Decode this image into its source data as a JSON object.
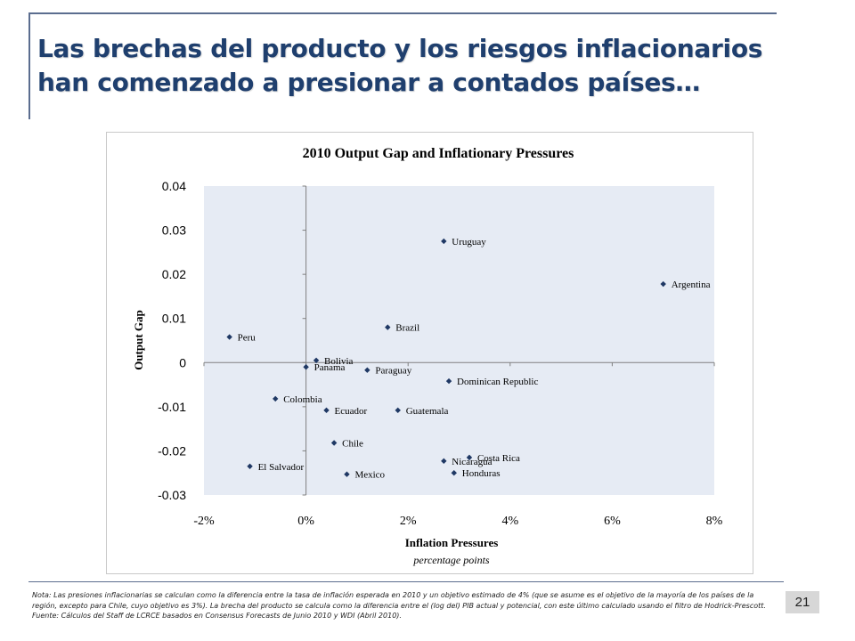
{
  "slide": {
    "title": "Las brechas del producto y los riesgos inflacionarios han comenzado a presionar a contados países…",
    "note": "Nota: Las presiones inflacionarias se calculan como la diferencia entre la tasa de inflación esperada en 2010  y un objetivo estimado de 4% (que se asume es el objetivo de la mayoría de los países de la región, excepto para Chile, cuyo objetivo es 3%). La brecha del producto se calcula como la diferencia entre el (log del) PIB actual y potencial, con este último calculado usando el filtro de Hodrick-Prescott. Fuente: Cálculos del Staff de LCRCE basados en Consensus Forecasts de Junio 2010 y WDI (Abril 2010).",
    "page_number": "21",
    "colors": {
      "title": "#1f3f6e",
      "rule": "#5b6d8f",
      "marker": "#1f3864",
      "plot_bg": "#e6ebf4",
      "page_box": "#d7d7d7"
    }
  },
  "chart_data": {
    "type": "scatter",
    "title": "2010 Output Gap and Inflationary Pressures",
    "xlabel": "Inflation Pressures",
    "xlabel_sub": "percentage points",
    "ylabel": "Output Gap",
    "xlim": [
      -2,
      8
    ],
    "ylim": [
      -0.03,
      0.04
    ],
    "xticks": [
      -2,
      0,
      2,
      4,
      6,
      8
    ],
    "xtick_labels": [
      "-2%",
      "0%",
      "2%",
      "4%",
      "6%",
      "8%"
    ],
    "yticks": [
      0.04,
      0.03,
      0.02,
      0.01,
      0,
      -0.01,
      -0.02,
      -0.03
    ],
    "ytick_labels": [
      "0.04",
      "0.03",
      "0.02",
      "0.01",
      "0",
      "-0.01",
      "-0.02",
      "-0.03"
    ],
    "grid": false,
    "legend": "none",
    "points": [
      {
        "label": "Uruguay",
        "x": 2.7,
        "y": 0.0275
      },
      {
        "label": "Argentina",
        "x": 7.0,
        "y": 0.0178
      },
      {
        "label": "Brazil",
        "x": 1.6,
        "y": 0.008
      },
      {
        "label": "Peru",
        "x": -1.5,
        "y": 0.0058
      },
      {
        "label": "Bolivia",
        "x": 0.2,
        "y": 0.0005
      },
      {
        "label": "Panama",
        "x": 0.0,
        "y": -0.001
      },
      {
        "label": "Paraguay",
        "x": 1.2,
        "y": -0.0017
      },
      {
        "label": "Dominican Republic",
        "x": 2.8,
        "y": -0.0042
      },
      {
        "label": "Colombia",
        "x": -0.6,
        "y": -0.0082
      },
      {
        "label": "Ecuador",
        "x": 0.4,
        "y": -0.0108
      },
      {
        "label": "Guatemala",
        "x": 1.8,
        "y": -0.0108
      },
      {
        "label": "Chile",
        "x": 0.55,
        "y": -0.0182
      },
      {
        "label": "Costa Rica",
        "x": 3.2,
        "y": -0.0215
      },
      {
        "label": "Nicaragua",
        "x": 2.7,
        "y": -0.0223
      },
      {
        "label": "El Salvador",
        "x": -1.1,
        "y": -0.0235
      },
      {
        "label": "Honduras",
        "x": 2.9,
        "y": -0.025
      },
      {
        "label": "Mexico",
        "x": 0.8,
        "y": -0.0253
      }
    ]
  }
}
